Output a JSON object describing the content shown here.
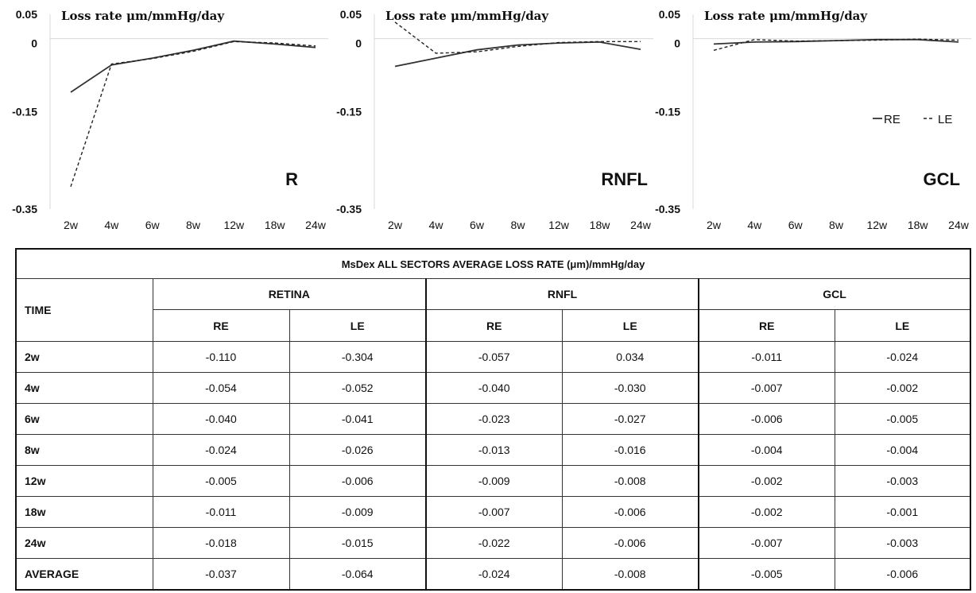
{
  "chart_data": [
    {
      "type": "line",
      "title": "Loss rate μm/mmHg/day",
      "panel_label": "R",
      "x": [
        "2w",
        "4w",
        "6w",
        "8w",
        "12w",
        "18w",
        "24w"
      ],
      "ylim": [
        -0.35,
        0.05
      ],
      "yticks": [
        "0.05",
        "0",
        "-0.15",
        "-0.35"
      ],
      "series": [
        {
          "name": "RE",
          "style": "solid",
          "values": [
            -0.11,
            -0.054,
            -0.04,
            -0.024,
            -0.005,
            -0.011,
            -0.018
          ]
        },
        {
          "name": "LE",
          "style": "dashed",
          "values": [
            -0.304,
            -0.052,
            -0.041,
            -0.026,
            -0.006,
            -0.009,
            -0.015
          ]
        }
      ]
    },
    {
      "type": "line",
      "title": "Loss rate μm/mmHg/day",
      "panel_label": "RNFL",
      "x": [
        "2w",
        "4w",
        "6w",
        "8w",
        "12w",
        "18w",
        "24w"
      ],
      "ylim": [
        -0.35,
        0.05
      ],
      "yticks": [
        "0.05",
        "0",
        "-0.15",
        "-0.35"
      ],
      "series": [
        {
          "name": "RE",
          "style": "solid",
          "values": [
            -0.057,
            -0.04,
            -0.023,
            -0.013,
            -0.009,
            -0.007,
            -0.022
          ]
        },
        {
          "name": "LE",
          "style": "dashed",
          "values": [
            0.034,
            -0.03,
            -0.027,
            -0.016,
            -0.008,
            -0.006,
            -0.006
          ]
        }
      ]
    },
    {
      "type": "line",
      "title": "Loss rate μm/mmHg/day",
      "panel_label": "GCL",
      "x": [
        "2w",
        "4w",
        "6w",
        "8w",
        "12w",
        "18w",
        "24w"
      ],
      "ylim": [
        -0.35,
        0.05
      ],
      "yticks": [
        "0.05",
        "0",
        "-0.15",
        "-0.35"
      ],
      "legend": {
        "placement": "right",
        "entries": [
          "RE",
          "LE"
        ]
      },
      "series": [
        {
          "name": "RE",
          "style": "solid",
          "values": [
            -0.011,
            -0.007,
            -0.006,
            -0.004,
            -0.002,
            -0.002,
            -0.007
          ]
        },
        {
          "name": "LE",
          "style": "dashed",
          "values": [
            -0.024,
            -0.002,
            -0.005,
            -0.004,
            -0.003,
            -0.001,
            -0.003
          ]
        }
      ]
    }
  ],
  "table": {
    "caption": "MsDex ALL  SECTORS AVERAGE LOSS RATE (μm)/mmHg/day",
    "time_header": "TIME",
    "groups": [
      "RETINA",
      "RNFL",
      "GCL"
    ],
    "subheaders": [
      "RE",
      "LE",
      "RE",
      "LE",
      "RE",
      "LE"
    ],
    "rows": [
      {
        "label": "2w",
        "values": [
          "-0.110",
          "-0.304",
          "-0.057",
          "0.034",
          "-0.011",
          "-0.024"
        ]
      },
      {
        "label": "4w",
        "values": [
          "-0.054",
          "-0.052",
          "-0.040",
          "-0.030",
          "-0.007",
          "-0.002"
        ]
      },
      {
        "label": "6w",
        "values": [
          "-0.040",
          "-0.041",
          "-0.023",
          "-0.027",
          "-0.006",
          "-0.005"
        ]
      },
      {
        "label": "8w",
        "values": [
          "-0.024",
          "-0.026",
          "-0.013",
          "-0.016",
          "-0.004",
          "-0.004"
        ]
      },
      {
        "label": "12w",
        "values": [
          "-0.005",
          "-0.006",
          "-0.009",
          "-0.008",
          "-0.002",
          "-0.003"
        ]
      },
      {
        "label": "18w",
        "values": [
          "-0.011",
          "-0.009",
          "-0.007",
          "-0.006",
          "-0.002",
          "-0.001"
        ]
      },
      {
        "label": "24w",
        "values": [
          "-0.018",
          "-0.015",
          "-0.022",
          "-0.006",
          "-0.007",
          "-0.003"
        ]
      },
      {
        "label": "AVERAGE",
        "values": [
          "-0.037",
          "-0.064",
          "-0.024",
          "-0.008",
          "-0.005",
          "-0.006"
        ]
      }
    ]
  }
}
